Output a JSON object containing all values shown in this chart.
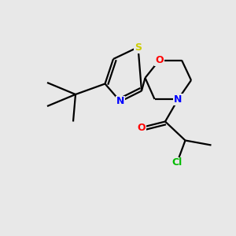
{
  "background_color": "#e8e8e8",
  "atom_colors": {
    "S": "#cccc00",
    "N": "#0000ff",
    "O": "#ff0000",
    "Cl": "#00bb00",
    "C": "#000000"
  },
  "figsize": [
    3.0,
    3.0
  ],
  "dpi": 100,
  "bond_lw": 1.6,
  "font_size": 9
}
